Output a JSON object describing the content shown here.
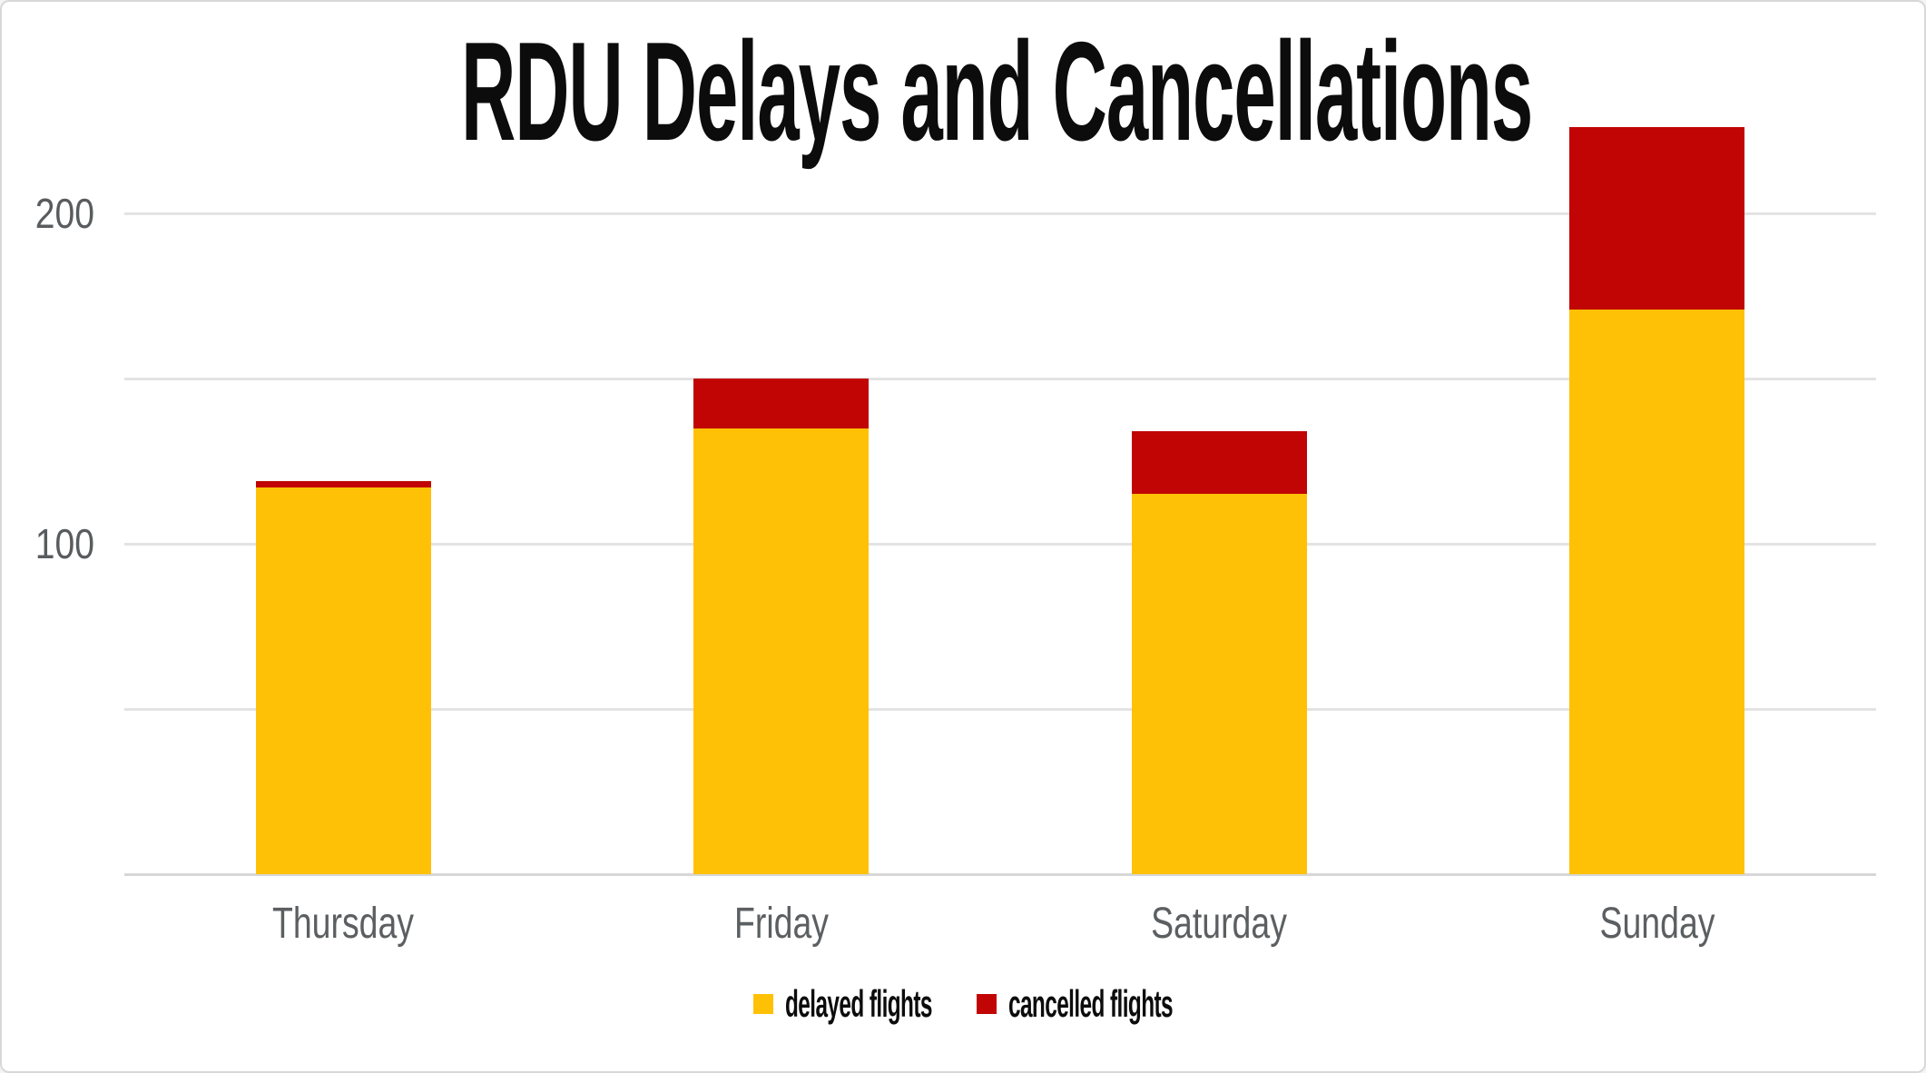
{
  "chart_data": {
    "type": "bar",
    "stacked": true,
    "title": "RDU Delays and Cancellations",
    "categories": [
      "Thursday",
      "Friday",
      "Saturday",
      "Sunday"
    ],
    "series": [
      {
        "name": "delayed flights",
        "color": "#FFC105",
        "values": [
          117,
          135,
          115,
          171
        ]
      },
      {
        "name": "cancelled flights",
        "color": "#C10404",
        "values": [
          2,
          15,
          19,
          55
        ]
      }
    ],
    "stack_totals": [
      119,
      150,
      134,
      226
    ],
    "xlabel": "",
    "ylabel": "",
    "ylim": [
      0,
      250
    ],
    "gridline_step": 50,
    "y_tick_labels": [
      "100",
      "200"
    ],
    "grid": true,
    "legend_position": "bottom"
  },
  "colors": {
    "background": "#ffffff",
    "border": "#d8d8d8",
    "gridline": "#e3e3e3",
    "axis_baseline": "#d7d7d7",
    "tick_text": "#595c5e",
    "title_text": "#0c0c0c"
  }
}
